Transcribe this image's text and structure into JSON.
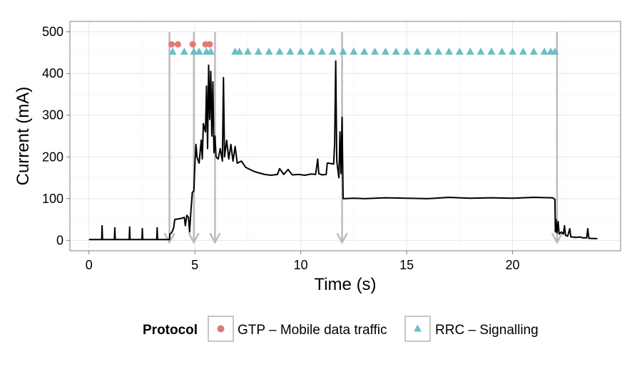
{
  "chart_data": {
    "type": "line",
    "title": "",
    "xlabel": "Time (s)",
    "ylabel": "Current (mA)",
    "xlim": [
      -0.9,
      25.1
    ],
    "ylim": [
      -25,
      525
    ],
    "x_ticks": [
      0,
      5,
      10,
      15,
      20
    ],
    "x_tick_labels": [
      "0",
      "5",
      "10",
      "15",
      "20"
    ],
    "y_ticks": [
      0,
      100,
      200,
      300,
      400,
      500
    ],
    "y_tick_labels": [
      "0",
      "100",
      "200",
      "300",
      "400",
      "500"
    ],
    "grid": true,
    "legend_position": "bottom",
    "legend": {
      "title": "Protocol",
      "entries": [
        {
          "label": "GTP – Mobile data traffic",
          "shape": "circle",
          "color": "#e07b73"
        },
        {
          "label": "RRC – Signalling",
          "shape": "triangle",
          "color": "#6bbfc4"
        }
      ]
    },
    "series": [
      {
        "type": "line",
        "color": "#000000",
        "points": [
          [
            0,
            2
          ],
          [
            0.6,
            2
          ],
          [
            0.62,
            35
          ],
          [
            0.64,
            2
          ],
          [
            1.2,
            2
          ],
          [
            1.22,
            30
          ],
          [
            1.24,
            2
          ],
          [
            1.9,
            2
          ],
          [
            1.92,
            32
          ],
          [
            1.94,
            2
          ],
          [
            2.5,
            2
          ],
          [
            2.52,
            28
          ],
          [
            2.54,
            2
          ],
          [
            3.2,
            2
          ],
          [
            3.22,
            30
          ],
          [
            3.24,
            2
          ],
          [
            3.8,
            2
          ],
          [
            3.82,
            15
          ],
          [
            3.9,
            18
          ],
          [
            4.0,
            30
          ],
          [
            4.05,
            50
          ],
          [
            4.3,
            52
          ],
          [
            4.5,
            55
          ],
          [
            4.55,
            35
          ],
          [
            4.62,
            60
          ],
          [
            4.7,
            55
          ],
          [
            4.75,
            20
          ],
          [
            4.82,
            75
          ],
          [
            4.88,
            115
          ],
          [
            4.95,
            118
          ],
          [
            5.0,
            180
          ],
          [
            5.05,
            230
          ],
          [
            5.1,
            200
          ],
          [
            5.2,
            185
          ],
          [
            5.3,
            240
          ],
          [
            5.35,
            195
          ],
          [
            5.4,
            280
          ],
          [
            5.5,
            260
          ],
          [
            5.55,
            370
          ],
          [
            5.6,
            220
          ],
          [
            5.65,
            420
          ],
          [
            5.7,
            290
          ],
          [
            5.75,
            405
          ],
          [
            5.8,
            250
          ],
          [
            5.85,
            380
          ],
          [
            5.9,
            210
          ],
          [
            5.95,
            250
          ],
          [
            6.0,
            200
          ],
          [
            6.1,
            195
          ],
          [
            6.2,
            220
          ],
          [
            6.3,
            190
          ],
          [
            6.35,
            390
          ],
          [
            6.4,
            200
          ],
          [
            6.5,
            240
          ],
          [
            6.6,
            195
          ],
          [
            6.7,
            230
          ],
          [
            6.8,
            190
          ],
          [
            6.9,
            225
          ],
          [
            7.0,
            185
          ],
          [
            7.2,
            190
          ],
          [
            7.4,
            175
          ],
          [
            7.6,
            170
          ],
          [
            7.8,
            165
          ],
          [
            8.0,
            162
          ],
          [
            8.3,
            158
          ],
          [
            8.6,
            156
          ],
          [
            8.9,
            158
          ],
          [
            9.0,
            172
          ],
          [
            9.2,
            158
          ],
          [
            9.4,
            170
          ],
          [
            9.6,
            157
          ],
          [
            9.9,
            158
          ],
          [
            10.2,
            156
          ],
          [
            10.5,
            159
          ],
          [
            10.7,
            158
          ],
          [
            10.8,
            195
          ],
          [
            10.85,
            160
          ],
          [
            11.0,
            157
          ],
          [
            11.2,
            158
          ],
          [
            11.25,
            185
          ],
          [
            11.3,
            185
          ],
          [
            11.55,
            183
          ],
          [
            11.6,
            230
          ],
          [
            11.65,
            430
          ],
          [
            11.7,
            190
          ],
          [
            11.8,
            150
          ],
          [
            11.85,
            260
          ],
          [
            11.9,
            160
          ],
          [
            11.95,
            295
          ],
          [
            12.0,
            100
          ],
          [
            12.5,
            101
          ],
          [
            13.0,
            100
          ],
          [
            14.0,
            102
          ],
          [
            15.0,
            101
          ],
          [
            16.0,
            100
          ],
          [
            17.0,
            103
          ],
          [
            18.0,
            101
          ],
          [
            19.0,
            102
          ],
          [
            20.0,
            101
          ],
          [
            21.0,
            103
          ],
          [
            21.9,
            102
          ],
          [
            22.0,
            98
          ],
          [
            22.02,
            20
          ],
          [
            22.05,
            50
          ],
          [
            22.1,
            18
          ],
          [
            22.15,
            45
          ],
          [
            22.2,
            15
          ],
          [
            22.3,
            20
          ],
          [
            22.4,
            15
          ],
          [
            22.45,
            35
          ],
          [
            22.5,
            12
          ],
          [
            22.6,
            10
          ],
          [
            22.7,
            28
          ],
          [
            22.75,
            8
          ],
          [
            22.8,
            8
          ],
          [
            23.0,
            7
          ],
          [
            23.2,
            8
          ],
          [
            23.3,
            6
          ],
          [
            23.5,
            6
          ],
          [
            23.55,
            28
          ],
          [
            23.6,
            5
          ],
          [
            24.0,
            4
          ]
        ]
      },
      {
        "name": "GTP – Mobile data traffic",
        "type": "scatter",
        "shape": "circle",
        "color": "#e07b73",
        "x": [
          3.9,
          4.2,
          4.9,
          5.5,
          5.7
        ],
        "y": [
          470,
          470,
          470,
          470,
          470
        ]
      },
      {
        "name": "RRC – Signalling",
        "type": "scatter",
        "shape": "triangle",
        "color": "#6bbfc4",
        "x": [
          3.95,
          4.5,
          4.95,
          5.2,
          5.55,
          5.75,
          6.9,
          7.1,
          7.5,
          8.0,
          8.5,
          9.0,
          9.5,
          10.0,
          10.5,
          11.0,
          11.5,
          12.0,
          12.5,
          13.0,
          13.5,
          14.0,
          14.5,
          15.0,
          15.5,
          16.0,
          16.5,
          17.0,
          17.5,
          18.0,
          18.5,
          19.0,
          19.5,
          20.0,
          20.5,
          21.0,
          21.5,
          21.8,
          22.0
        ],
        "y": [
          452,
          452,
          452,
          452,
          452,
          452,
          452,
          452,
          452,
          452,
          452,
          452,
          452,
          452,
          452,
          452,
          452,
          452,
          452,
          452,
          452,
          452,
          452,
          452,
          452,
          452,
          452,
          452,
          452,
          452,
          452,
          452,
          452,
          452,
          452,
          452,
          452,
          452,
          452
        ]
      }
    ],
    "annotations": {
      "arrows": {
        "color": "#bbbbbb",
        "x": [
          3.8,
          4.95,
          5.95,
          11.95,
          22.1
        ],
        "y_from": 500,
        "y_to": -5
      }
    }
  }
}
